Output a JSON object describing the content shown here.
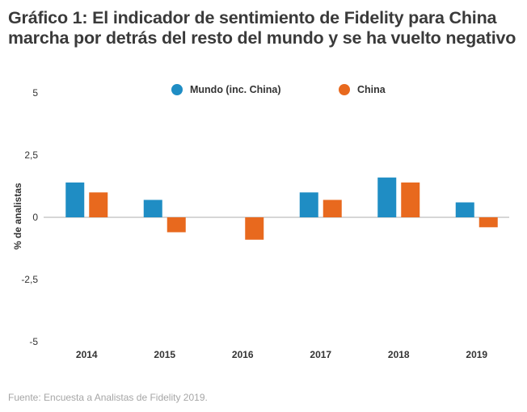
{
  "title": "Gráfico 1: El indicador de sentimiento de Fidelity para China marcha por detrás del resto del mundo y se ha vuelto negativo",
  "source": "Fuente: Encuesta a Analistas de Fidelity 2019.",
  "colors": {
    "mundo": "#1f8dc4",
    "china": "#e8691e",
    "axis": "#bdbdbd"
  },
  "legend": [
    {
      "label": "Mundo (inc. China)",
      "color": "#1f8dc4"
    },
    {
      "label": "China",
      "color": "#e8691e"
    }
  ],
  "chart_data": {
    "type": "bar",
    "title": "Gráfico 1: El indicador de sentimiento de Fidelity para China marcha por detrás del resto del mundo y se ha vuelto negativo",
    "xlabel": "",
    "ylabel": "% de analistas",
    "categories": [
      "2014",
      "2015",
      "2016",
      "2017",
      "2018",
      "2019"
    ],
    "series": [
      {
        "name": "Mundo (inc. China)",
        "color": "#1f8dc4",
        "values": [
          1.4,
          0.7,
          0.0,
          1.0,
          1.6,
          0.6
        ]
      },
      {
        "name": "China",
        "color": "#e8691e",
        "values": [
          1.0,
          -0.6,
          -0.9,
          0.7,
          1.4,
          -0.4
        ]
      }
    ],
    "ylim": [
      -5,
      5
    ],
    "yticks": [
      5,
      2.5,
      0,
      -2.5,
      -5
    ],
    "ytick_labels": [
      "5",
      "2,5",
      "0",
      "-2,5",
      "-5"
    ],
    "grid": false,
    "zero_line": true,
    "legend_position": "top-center"
  }
}
